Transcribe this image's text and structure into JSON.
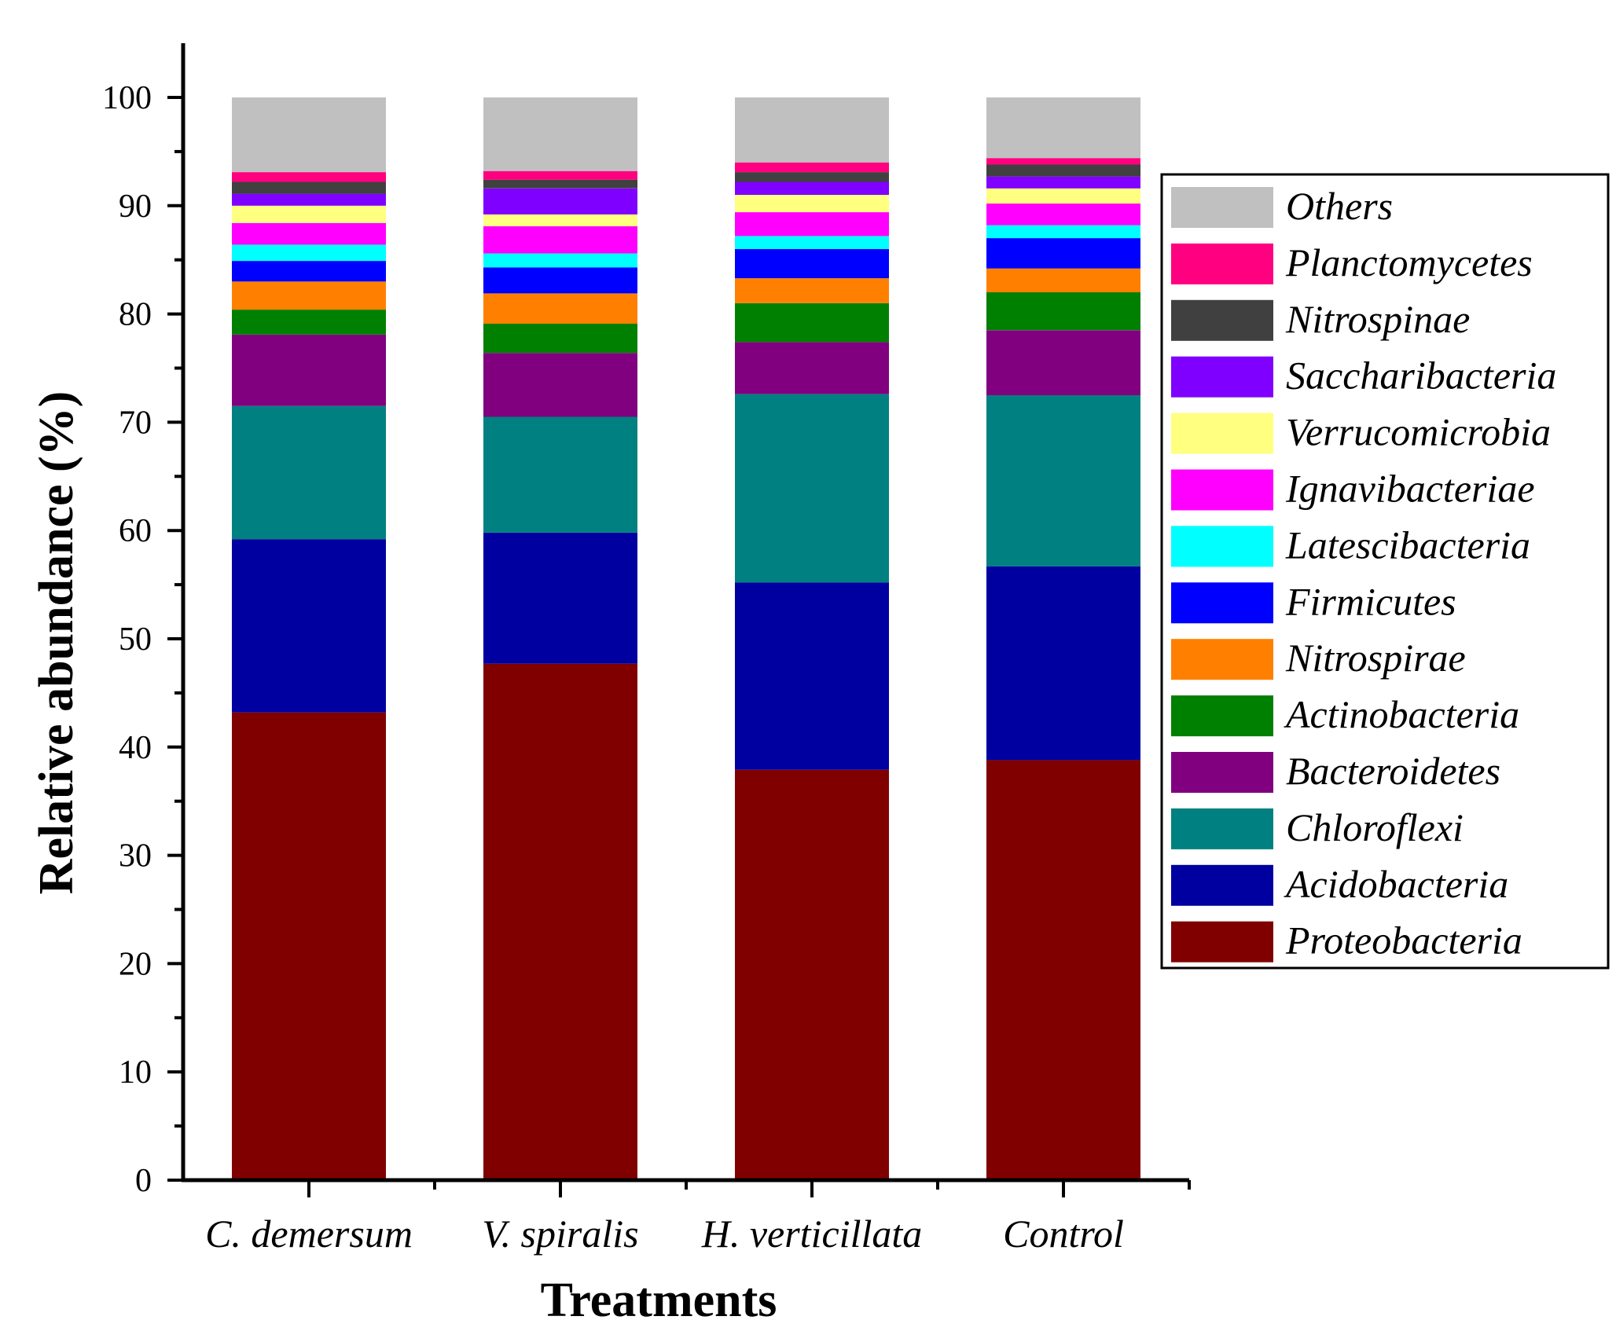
{
  "chart_data": {
    "type": "bar",
    "stacked": true,
    "categories": [
      "C. demersum",
      "V. spiralis",
      "H. verticillata",
      "Control"
    ],
    "xlabel": "Treatments",
    "ylabel": "Relative abundance (%)",
    "ylim": [
      0,
      105
    ],
    "yticks": [
      0,
      10,
      20,
      30,
      40,
      50,
      60,
      70,
      80,
      90,
      100
    ],
    "legend_position": "right",
    "series": [
      {
        "name": "Proteobacteria",
        "color": "#800000",
        "values": [
          43.2,
          47.7,
          37.9,
          38.8
        ]
      },
      {
        "name": "Acidobacteria",
        "color": "#0000A0",
        "values": [
          16.0,
          12.1,
          17.3,
          17.9
        ]
      },
      {
        "name": "Chloroflexi",
        "color": "#008080",
        "values": [
          12.3,
          10.7,
          17.4,
          15.8
        ]
      },
      {
        "name": "Bacteroidetes",
        "color": "#800080",
        "values": [
          6.6,
          5.9,
          4.8,
          6.0
        ]
      },
      {
        "name": "Actinobacteria",
        "color": "#008000",
        "values": [
          2.3,
          2.7,
          3.6,
          3.5
        ]
      },
      {
        "name": "Nitrospirae",
        "color": "#FF8000",
        "values": [
          2.6,
          2.8,
          2.3,
          2.2
        ]
      },
      {
        "name": "Firmicutes",
        "color": "#0000FF",
        "values": [
          1.9,
          2.4,
          2.7,
          2.8
        ]
      },
      {
        "name": "Latescibacteria",
        "color": "#00FFFF",
        "values": [
          1.5,
          1.3,
          1.2,
          1.2
        ]
      },
      {
        "name": "Ignavibacteriae",
        "color": "#FF00FF",
        "values": [
          2.0,
          2.5,
          2.2,
          2.0
        ]
      },
      {
        "name": "Verrucomicrobia",
        "color": "#FFFF80",
        "values": [
          1.6,
          1.1,
          1.6,
          1.4
        ]
      },
      {
        "name": "Saccharibacteria",
        "color": "#8000FF",
        "values": [
          1.1,
          2.4,
          1.2,
          1.1
        ]
      },
      {
        "name": "Nitrospinae",
        "color": "#404040",
        "values": [
          1.1,
          0.8,
          0.9,
          1.1
        ]
      },
      {
        "name": "Planctomycetes",
        "color": "#FF0080",
        "values": [
          0.9,
          0.8,
          0.9,
          0.6
        ]
      },
      {
        "name": "Others",
        "color": "#C0C0C0",
        "values": [
          6.9,
          6.8,
          6.0,
          5.6
        ]
      }
    ]
  }
}
